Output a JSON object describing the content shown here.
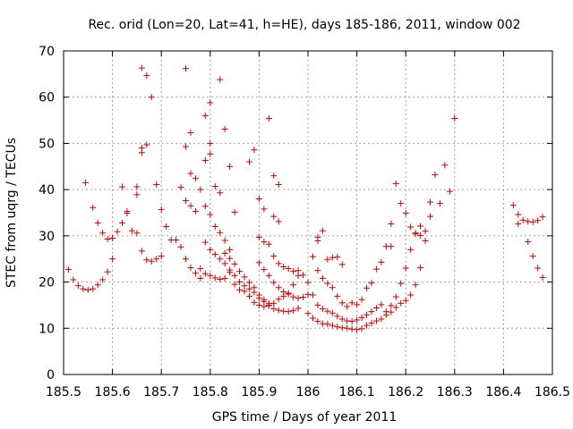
{
  "chart_data": {
    "type": "scatter",
    "title": "Rec. orid (Lon=20, Lat=41, h=HE), days 185-186, 2011, window 002",
    "xlabel": "GPS time / Days of year 2011",
    "ylabel": "STEC from uqrg / TECUs",
    "xlim": [
      185.5,
      186.5
    ],
    "ylim": [
      0,
      70
    ],
    "xticks": [
      "185.5",
      "185.6",
      "185.7",
      "185.8",
      "185.9",
      "186",
      "186.1",
      "186.2",
      "186.3",
      "186.4",
      "186.5"
    ],
    "xtick_values": [
      185.5,
      185.6,
      185.7,
      185.8,
      185.9,
      186.0,
      186.1,
      186.2,
      186.3,
      186.4,
      186.5
    ],
    "yticks": [
      "0",
      "10",
      "20",
      "30",
      "40",
      "50",
      "60",
      "70"
    ],
    "ytick_values": [
      0,
      10,
      20,
      30,
      40,
      50,
      60,
      70
    ],
    "grid": true,
    "marker": "plus",
    "color": "#cc0000",
    "series": [
      {
        "points": [
          [
            185.51,
            22.7
          ],
          [
            185.52,
            20.5
          ],
          [
            185.53,
            19.2
          ],
          [
            185.54,
            18.5
          ],
          [
            185.55,
            18.3
          ],
          [
            185.56,
            18.5
          ],
          [
            185.57,
            19.4
          ],
          [
            185.58,
            20.5
          ],
          [
            185.59,
            22.2
          ],
          [
            185.6,
            25.0
          ],
          [
            185.545,
            41.5
          ],
          [
            185.56,
            36.1
          ],
          [
            185.57,
            32.8
          ],
          [
            185.58,
            30.6
          ],
          [
            185.59,
            29.3
          ],
          [
            185.6,
            29.5
          ],
          [
            185.61,
            30.9
          ],
          [
            185.62,
            32.8
          ],
          [
            185.62,
            40.6
          ],
          [
            185.63,
            35.3
          ],
          [
            185.63,
            34.9
          ],
          [
            185.64,
            31.1
          ],
          [
            185.65,
            30.6
          ],
          [
            185.65,
            38.9
          ],
          [
            185.65,
            40.6
          ],
          [
            185.66,
            26.7
          ],
          [
            185.67,
            24.8
          ],
          [
            185.68,
            24.5
          ],
          [
            185.69,
            25.0
          ],
          [
            185.7,
            25.6
          ],
          [
            185.66,
            48.0
          ],
          [
            185.66,
            49.0
          ],
          [
            185.67,
            49.7
          ],
          [
            185.68,
            60.0
          ],
          [
            185.67,
            64.7
          ],
          [
            185.66,
            66.3
          ],
          [
            185.69,
            41.1
          ],
          [
            185.7,
            35.7
          ],
          [
            185.71,
            32.0
          ],
          [
            185.72,
            29.1
          ],
          [
            185.73,
            29.1
          ],
          [
            185.74,
            27.6
          ],
          [
            185.75,
            25.0
          ],
          [
            185.76,
            23.1
          ],
          [
            185.77,
            21.9
          ],
          [
            185.78,
            20.8
          ],
          [
            185.74,
            40.5
          ],
          [
            185.75,
            37.6
          ],
          [
            185.76,
            36.5
          ],
          [
            185.77,
            35.3
          ],
          [
            185.75,
            49.3
          ],
          [
            185.76,
            52.3
          ],
          [
            185.75,
            66.2
          ],
          [
            185.76,
            43.5
          ],
          [
            185.77,
            42.4
          ],
          [
            185.78,
            40.0
          ],
          [
            185.79,
            36.4
          ],
          [
            185.8,
            34.6
          ],
          [
            185.81,
            32.0
          ],
          [
            185.82,
            30.7
          ],
          [
            185.83,
            29.0
          ],
          [
            185.84,
            27.0
          ],
          [
            185.79,
            46.3
          ],
          [
            185.8,
            47.7
          ],
          [
            185.8,
            50.0
          ],
          [
            185.79,
            56.0
          ],
          [
            185.8,
            58.8
          ],
          [
            185.82,
            63.8
          ],
          [
            185.81,
            40.7
          ],
          [
            185.82,
            39.3
          ],
          [
            185.83,
            53.1
          ],
          [
            185.84,
            45.0
          ],
          [
            185.85,
            35.1
          ],
          [
            185.79,
            28.6
          ],
          [
            185.8,
            27.0
          ],
          [
            185.81,
            26.0
          ],
          [
            185.82,
            25.0
          ],
          [
            185.83,
            24.0
          ],
          [
            185.78,
            22.9
          ],
          [
            185.79,
            21.8
          ],
          [
            185.8,
            21.4
          ],
          [
            185.81,
            20.9
          ],
          [
            185.82,
            20.6
          ],
          [
            185.83,
            20.8
          ],
          [
            185.84,
            22.6
          ],
          [
            185.85,
            21.4
          ],
          [
            185.86,
            20.0
          ],
          [
            185.87,
            19.2
          ],
          [
            185.88,
            18.5
          ],
          [
            185.89,
            17.8
          ],
          [
            185.9,
            16.5
          ],
          [
            185.91,
            15.8
          ],
          [
            185.92,
            15.4
          ],
          [
            185.83,
            26.2
          ],
          [
            185.84,
            25.1
          ],
          [
            185.85,
            23.9
          ],
          [
            185.86,
            22.3
          ],
          [
            185.87,
            21.1
          ],
          [
            185.88,
            19.9
          ],
          [
            185.89,
            18.8
          ],
          [
            185.9,
            17.2
          ],
          [
            185.91,
            16.2
          ],
          [
            185.92,
            15.0
          ],
          [
            185.93,
            14.2
          ],
          [
            185.94,
            13.9
          ],
          [
            185.95,
            13.7
          ],
          [
            185.96,
            13.6
          ],
          [
            185.97,
            13.8
          ],
          [
            185.98,
            14.3
          ],
          [
            185.88,
            46.0
          ],
          [
            185.89,
            48.6
          ],
          [
            185.9,
            38.0
          ],
          [
            185.91,
            35.8
          ],
          [
            185.92,
            55.4
          ],
          [
            185.93,
            43.0
          ],
          [
            185.94,
            41.1
          ],
          [
            185.9,
            29.7
          ],
          [
            185.91,
            28.7
          ],
          [
            185.92,
            28.2
          ],
          [
            185.93,
            25.6
          ],
          [
            185.94,
            24.0
          ],
          [
            185.95,
            23.3
          ],
          [
            185.96,
            22.9
          ],
          [
            185.97,
            22.3
          ],
          [
            185.98,
            22.5
          ],
          [
            185.84,
            22.1
          ],
          [
            185.85,
            19.5
          ],
          [
            185.86,
            18.3
          ],
          [
            185.87,
            18.0
          ],
          [
            185.88,
            16.9
          ],
          [
            185.89,
            15.6
          ],
          [
            185.9,
            15.0
          ],
          [
            185.91,
            14.7
          ],
          [
            185.92,
            14.9
          ],
          [
            185.93,
            15.4
          ],
          [
            185.94,
            16.3
          ],
          [
            185.95,
            16.9
          ],
          [
            185.96,
            17.6
          ],
          [
            185.97,
            19.4
          ],
          [
            185.98,
            21.4
          ],
          [
            185.99,
            21.5
          ],
          [
            185.93,
            34.2
          ],
          [
            185.94,
            33.1
          ],
          [
            185.9,
            24.2
          ],
          [
            185.91,
            22.7
          ],
          [
            185.92,
            21.4
          ],
          [
            185.93,
            19.9
          ],
          [
            185.94,
            18.8
          ],
          [
            185.95,
            17.9
          ],
          [
            185.96,
            17.4
          ],
          [
            185.97,
            16.8
          ],
          [
            185.98,
            16.5
          ],
          [
            185.99,
            16.7
          ],
          [
            186.0,
            17.3
          ],
          [
            186.01,
            25.5
          ],
          [
            186.02,
            28.9
          ],
          [
            186.02,
            29.7
          ],
          [
            186.03,
            31.1
          ],
          [
            186.04,
            24.9
          ],
          [
            186.05,
            25.3
          ],
          [
            186.06,
            25.4
          ],
          [
            186.07,
            23.8
          ],
          [
            186.02,
            22.5
          ],
          [
            186.03,
            20.8
          ],
          [
            186.04,
            19.7
          ],
          [
            186.05,
            18.8
          ],
          [
            186.06,
            16.9
          ],
          [
            186.07,
            15.5
          ],
          [
            186.08,
            14.7
          ],
          [
            186.0,
            19.9
          ],
          [
            186.01,
            17.2
          ],
          [
            186.02,
            15.0
          ],
          [
            186.03,
            14.2
          ],
          [
            186.04,
            13.7
          ],
          [
            186.05,
            13.3
          ],
          [
            186.06,
            12.6
          ],
          [
            186.07,
            12.0
          ],
          [
            186.08,
            11.6
          ],
          [
            186.09,
            11.5
          ],
          [
            186.1,
            11.8
          ],
          [
            186.11,
            12.3
          ],
          [
            186.12,
            12.9
          ],
          [
            186.13,
            13.6
          ],
          [
            186.14,
            14.4
          ],
          [
            186.15,
            15.1
          ],
          [
            186.0,
            13.2
          ],
          [
            186.01,
            12.2
          ],
          [
            186.02,
            11.5
          ],
          [
            186.03,
            11.0
          ],
          [
            186.04,
            10.9
          ],
          [
            186.05,
            10.6
          ],
          [
            186.06,
            10.3
          ],
          [
            186.07,
            10.1
          ],
          [
            186.08,
            10.0
          ],
          [
            186.09,
            9.8
          ],
          [
            186.1,
            9.7
          ],
          [
            186.11,
            9.9
          ],
          [
            186.12,
            10.6
          ],
          [
            186.13,
            11.1
          ],
          [
            186.14,
            11.6
          ],
          [
            186.15,
            12.0
          ],
          [
            186.09,
            15.5
          ],
          [
            186.1,
            15.1
          ],
          [
            186.11,
            16.2
          ],
          [
            186.12,
            18.7
          ],
          [
            186.13,
            19.8
          ],
          [
            186.14,
            22.8
          ],
          [
            186.15,
            24.3
          ],
          [
            186.16,
            27.7
          ],
          [
            186.17,
            27.7
          ],
          [
            186.17,
            32.6
          ],
          [
            186.18,
            41.3
          ],
          [
            186.19,
            37.0
          ],
          [
            186.2,
            34.9
          ],
          [
            186.21,
            31.9
          ],
          [
            186.22,
            30.6
          ],
          [
            186.23,
            30.1
          ],
          [
            186.16,
            13.6
          ],
          [
            186.17,
            14.9
          ],
          [
            186.18,
            16.8
          ],
          [
            186.19,
            19.7
          ],
          [
            186.2,
            23.0
          ],
          [
            186.21,
            27.0
          ],
          [
            186.22,
            30.4
          ],
          [
            186.23,
            32.1
          ],
          [
            186.24,
            31.0
          ],
          [
            186.25,
            37.3
          ],
          [
            186.26,
            43.2
          ],
          [
            186.27,
            37.0
          ],
          [
            186.28,
            45.3
          ],
          [
            186.29,
            39.6
          ],
          [
            186.3,
            55.4
          ],
          [
            186.16,
            12.9
          ],
          [
            186.17,
            13.5
          ],
          [
            186.18,
            14.5
          ],
          [
            186.19,
            15.4
          ],
          [
            186.2,
            16.0
          ],
          [
            186.21,
            17.2
          ],
          [
            186.22,
            19.4
          ],
          [
            186.23,
            23.1
          ],
          [
            186.24,
            28.9
          ],
          [
            186.25,
            34.2
          ],
          [
            186.42,
            36.6
          ],
          [
            186.43,
            34.6
          ],
          [
            186.43,
            32.6
          ],
          [
            186.44,
            33.4
          ],
          [
            186.45,
            28.7
          ],
          [
            186.46,
            25.6
          ],
          [
            186.47,
            23.0
          ],
          [
            186.48,
            21.0
          ],
          [
            186.45,
            33.1
          ],
          [
            186.46,
            33.0
          ],
          [
            186.47,
            33.3
          ],
          [
            186.48,
            34.1
          ]
        ]
      }
    ]
  }
}
